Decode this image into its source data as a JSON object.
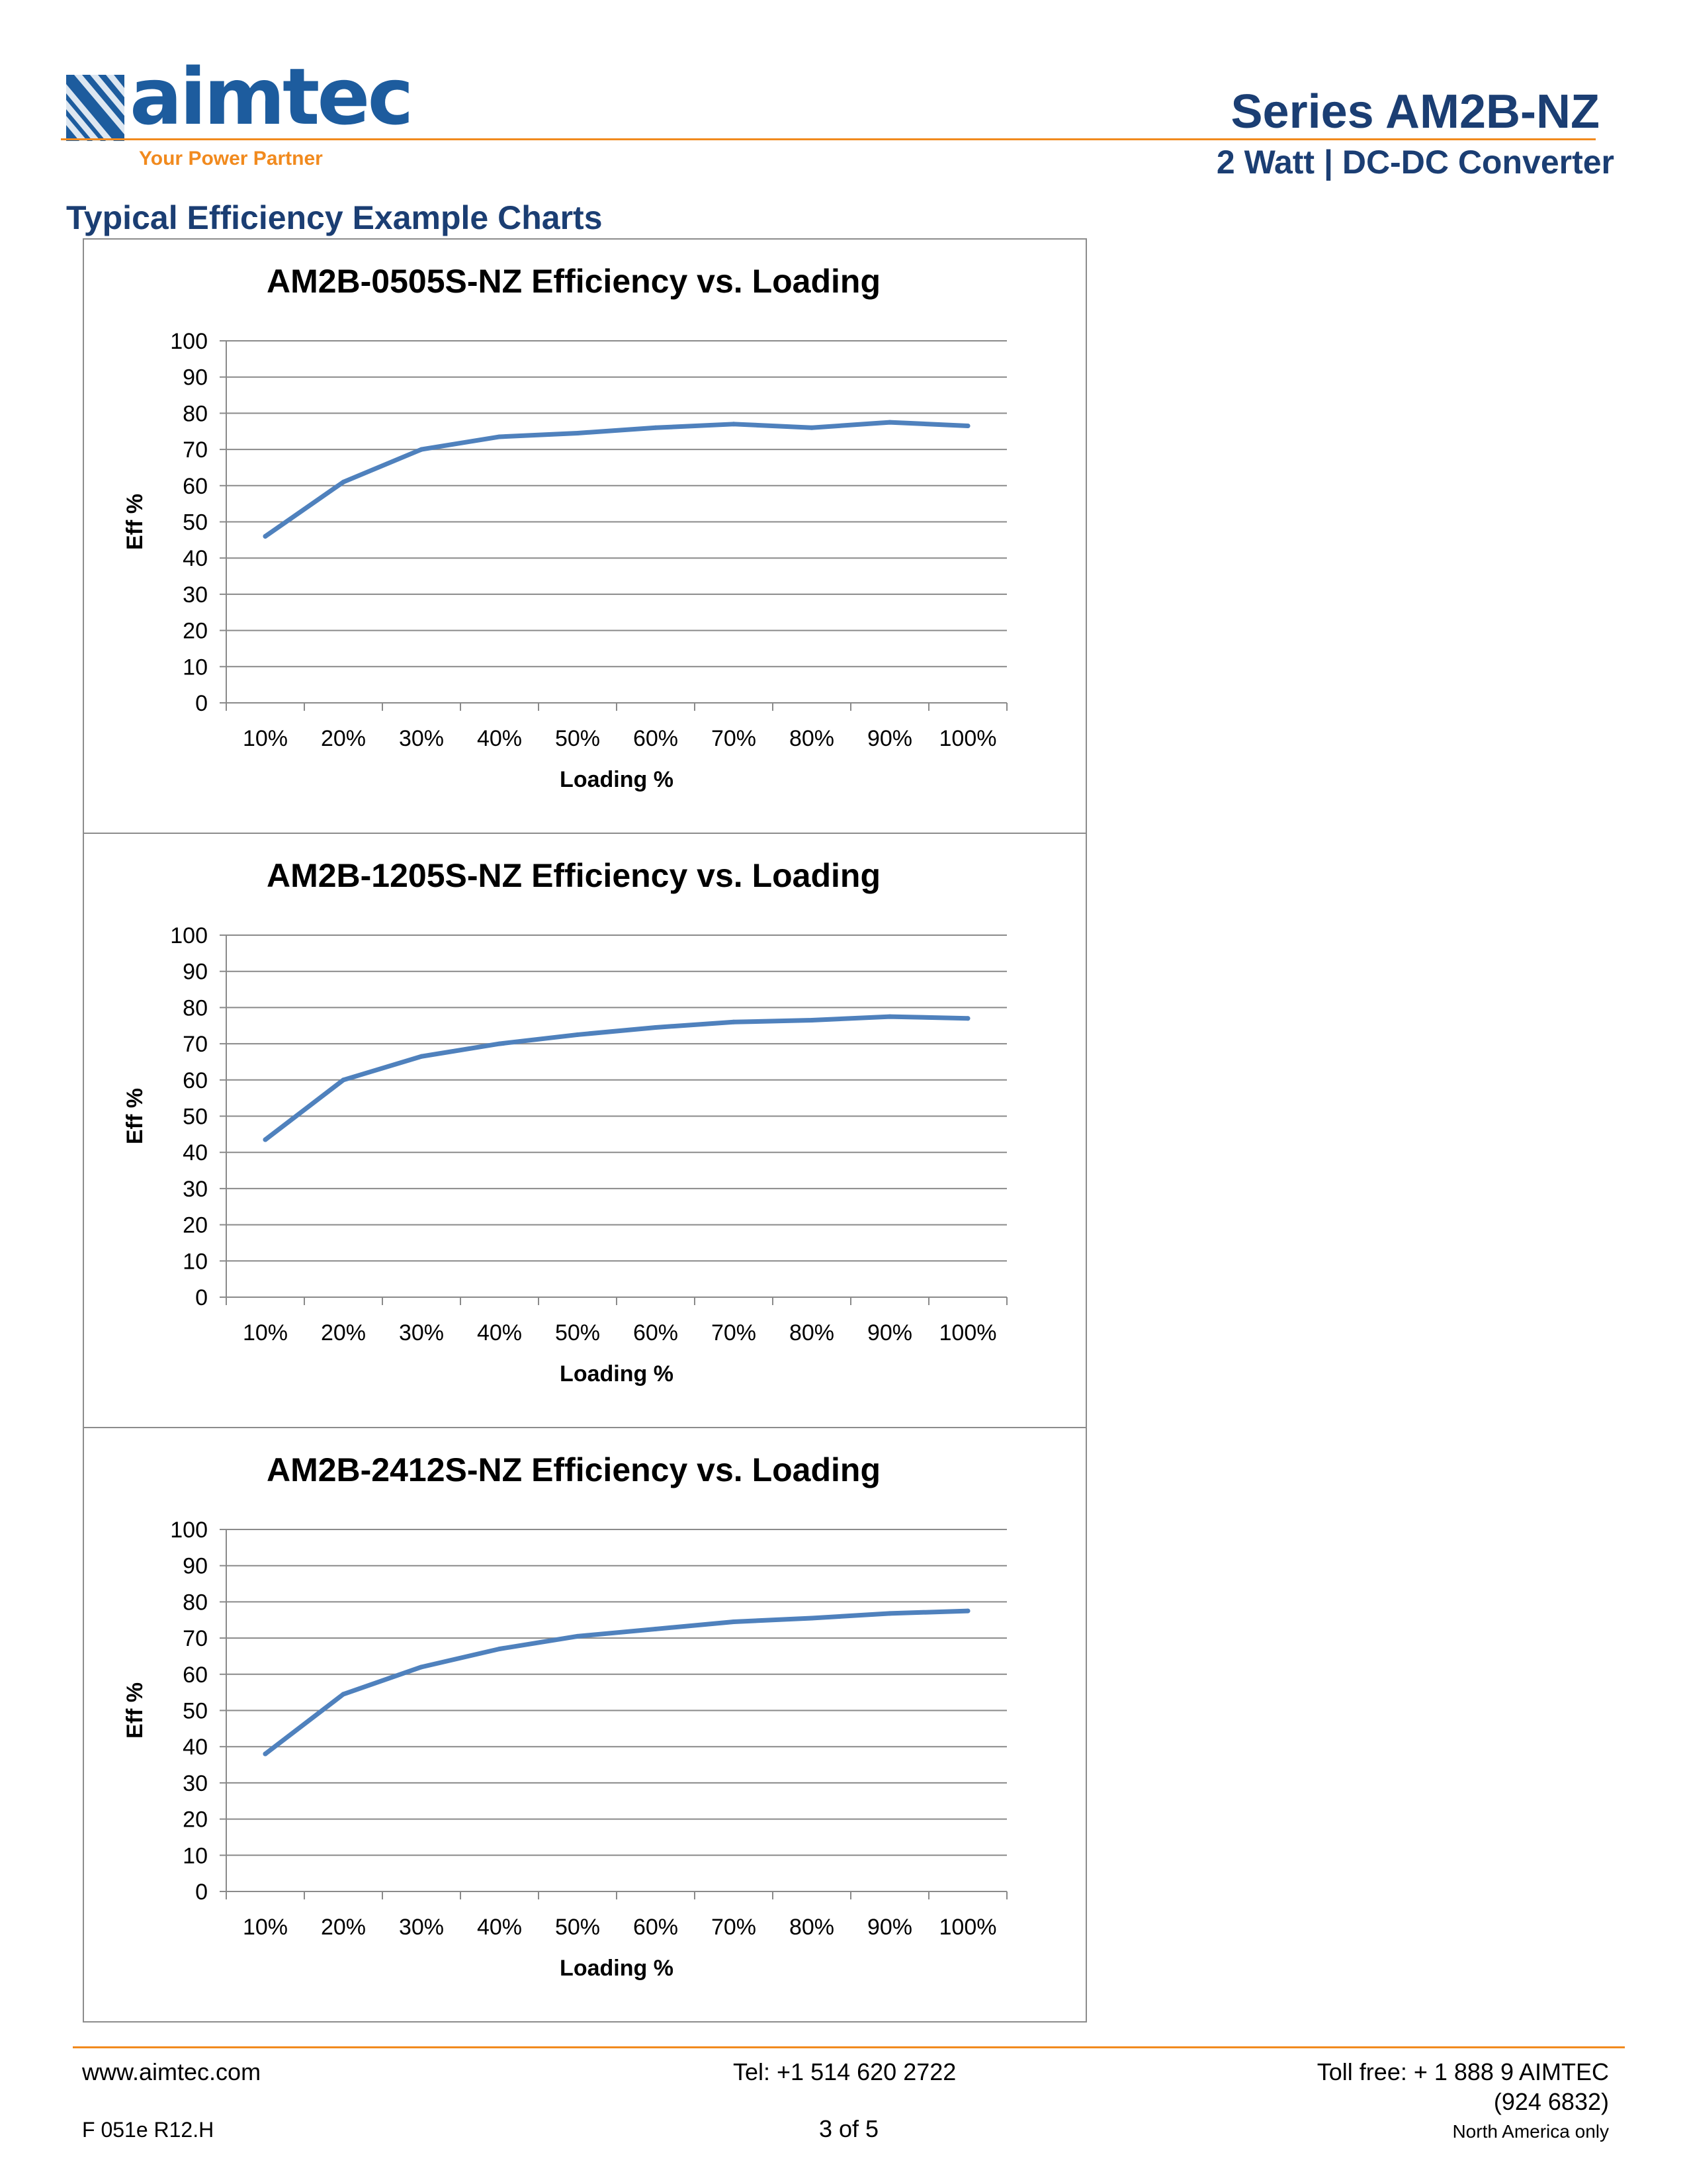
{
  "header": {
    "logo_text": "aimtec",
    "logo_tagline": "Your Power Partner",
    "series_title": "Series AM2B-NZ",
    "series_subtitle": "2 Watt | DC-DC Converter"
  },
  "section_title": "Typical Efficiency Example Charts",
  "chart_data": [
    {
      "type": "line",
      "title": "AM2B-0505S-NZ Efficiency vs. Loading",
      "xlabel": "Loading %",
      "ylabel": "Eff %",
      "categories": [
        "10%",
        "20%",
        "30%",
        "40%",
        "50%",
        "60%",
        "70%",
        "80%",
        "90%",
        "100%"
      ],
      "y_ticks": [
        "0",
        "10",
        "20",
        "30",
        "40",
        "50",
        "60",
        "70",
        "80",
        "90",
        "100"
      ],
      "values": [
        46,
        61,
        70,
        73.5,
        74.5,
        76,
        77,
        76,
        77.5,
        76.5
      ],
      "ylim": [
        0,
        100
      ],
      "grid": true,
      "legend": "none",
      "line_color": "#4f81bd"
    },
    {
      "type": "line",
      "title": "AM2B-1205S-NZ Efficiency vs. Loading",
      "xlabel": "Loading %",
      "ylabel": "Eff %",
      "categories": [
        "10%",
        "20%",
        "30%",
        "40%",
        "50%",
        "60%",
        "70%",
        "80%",
        "90%",
        "100%"
      ],
      "y_ticks": [
        "0",
        "10",
        "20",
        "30",
        "40",
        "50",
        "60",
        "70",
        "80",
        "90",
        "100"
      ],
      "values": [
        43.5,
        60,
        66.5,
        70,
        72.5,
        74.5,
        76,
        76.5,
        77.5,
        77
      ],
      "ylim": [
        0,
        100
      ],
      "grid": true,
      "legend": "none",
      "line_color": "#4f81bd"
    },
    {
      "type": "line",
      "title": "AM2B-2412S-NZ Efficiency vs. Loading",
      "xlabel": "Loading %",
      "ylabel": "Eff %",
      "categories": [
        "10%",
        "20%",
        "30%",
        "40%",
        "50%",
        "60%",
        "70%",
        "80%",
        "90%",
        "100%"
      ],
      "y_ticks": [
        "0",
        "10",
        "20",
        "30",
        "40",
        "50",
        "60",
        "70",
        "80",
        "90",
        "100"
      ],
      "values": [
        38,
        54.5,
        62,
        67,
        70.5,
        72.5,
        74.5,
        75.5,
        76.8,
        77.5
      ],
      "ylim": [
        0,
        100
      ],
      "grid": true,
      "legend": "none",
      "line_color": "#4f81bd"
    }
  ],
  "footer": {
    "website": "www.aimtec.com",
    "tel": "Tel: +1 514 620 2722",
    "toll_free": "Toll free: + 1 888 9 AIMTEC",
    "toll_free_digits": "(924 6832)",
    "form_code": "F 051e R12.H",
    "page": "3 of 5",
    "region_note": "North America only"
  },
  "colors": {
    "brand_blue": "#1d5c9e",
    "heading_navy": "#1b3e73",
    "accent_orange": "#f18a1e"
  }
}
